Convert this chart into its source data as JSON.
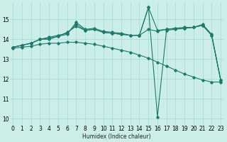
{
  "xlabel": "Humidex (Indice chaleur)",
  "bg_color": "#cceee8",
  "grid_color": "#aaddda",
  "line_color": "#1a7a6e",
  "x_values": [
    0,
    1,
    2,
    3,
    4,
    5,
    6,
    7,
    8,
    9,
    10,
    11,
    12,
    13,
    14,
    15,
    16,
    17,
    18,
    19,
    20,
    21,
    22,
    23
  ],
  "series": [
    [
      13.6,
      13.7,
      13.8,
      14.0,
      14.0,
      14.15,
      14.25,
      14.85,
      14.5,
      14.55,
      14.4,
      14.35,
      14.3,
      14.2,
      14.2,
      15.6,
      14.45,
      14.5,
      14.55,
      14.6,
      14.6,
      14.75,
      14.25,
      11.95
    ],
    [
      13.6,
      13.7,
      13.8,
      14.0,
      14.05,
      14.15,
      14.35,
      14.65,
      14.45,
      14.5,
      14.35,
      14.3,
      14.25,
      14.2,
      14.2,
      14.5,
      14.4,
      14.5,
      14.55,
      14.55,
      14.6,
      14.7,
      14.2,
      11.95
    ],
    [
      13.6,
      13.7,
      13.8,
      14.0,
      14.1,
      14.2,
      14.3,
      14.75,
      14.45,
      14.5,
      14.35,
      14.3,
      14.25,
      14.2,
      14.2,
      15.6,
      10.1,
      14.45,
      14.5,
      14.55,
      14.6,
      14.7,
      14.2,
      11.95
    ],
    [
      13.55,
      13.6,
      13.65,
      13.75,
      13.8,
      13.8,
      13.85,
      13.85,
      13.8,
      13.75,
      13.65,
      13.55,
      13.45,
      13.35,
      13.2,
      13.05,
      12.85,
      12.65,
      12.45,
      12.25,
      12.1,
      11.95,
      11.85,
      11.85
    ]
  ],
  "xlim": [
    -0.3,
    23.3
  ],
  "ylim": [
    9.7,
    15.85
  ],
  "yticks": [
    10,
    11,
    12,
    13,
    14,
    15
  ],
  "xtick_labels": [
    "0",
    "1",
    "2",
    "3",
    "4",
    "5",
    "6",
    "7",
    "8",
    "9",
    "10",
    "11",
    "12",
    "13",
    "14",
    "15",
    "16",
    "17",
    "18",
    "19",
    "20",
    "21",
    "22",
    "23"
  ]
}
